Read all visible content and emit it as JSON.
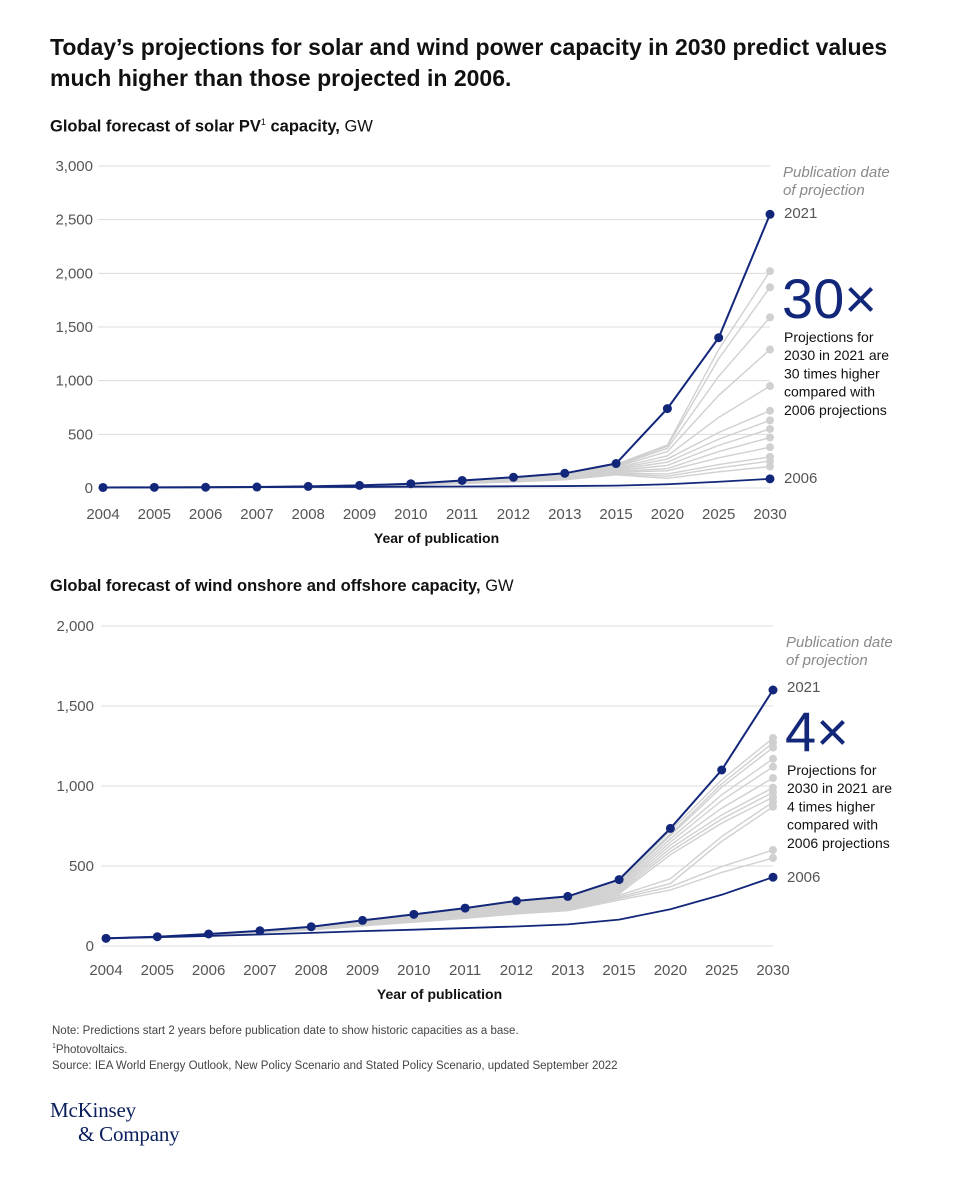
{
  "headline": "Today’s projections for solar and wind power capacity in 2030 predict values much higher than those projected in 2006.",
  "chart_data": [
    {
      "type": "line",
      "title_main": "Global forecast of solar PV",
      "title_sup": "1",
      "title_bold_end": " capacity,",
      "title_unit": " GW",
      "xlabel": "Year of publication",
      "categories": [
        "2004",
        "2005",
        "2006",
        "2007",
        "2008",
        "2009",
        "2010",
        "2011",
        "2012",
        "2013",
        "2015",
        "2020",
        "2025",
        "2030"
      ],
      "yticks": [
        "0",
        "500",
        "1,000",
        "1,500",
        "2,000",
        "2,500",
        "3,000"
      ],
      "ytick_values": [
        0,
        500,
        1000,
        1500,
        2000,
        2500,
        3000
      ],
      "ylim": [
        0,
        3000
      ],
      "legend_title": [
        "Publication date",
        "of projection"
      ],
      "label_top": "2021",
      "label_bottom": "2006",
      "multiplier": "30×",
      "note": [
        "Projections for",
        "2030 in 2021 are",
        "30 times higher",
        "compared with",
        "2006 projections"
      ],
      "series_2021": [
        5,
        6,
        7,
        9,
        15,
        24,
        40,
        70,
        100,
        137,
        228,
        740,
        1400,
        2550
      ],
      "series_2006": [
        5,
        6,
        7,
        8,
        9,
        10,
        12,
        14,
        16,
        18,
        22,
        35,
        58,
        85
      ],
      "grey_2030": [
        2020,
        1870,
        1590,
        1290,
        950,
        720,
        630,
        550,
        470,
        380,
        290,
        250,
        200
      ],
      "grey_2020": [
        400,
        390,
        370,
        340,
        300,
        270,
        240,
        210,
        180,
        160,
        130,
        110,
        90
      ]
    },
    {
      "type": "line",
      "title_main": "Global forecast of wind onshore and offshore capacity,",
      "title_sup": "",
      "title_bold_end": "",
      "title_unit": " GW",
      "xlabel": "Year of publication",
      "categories": [
        "2004",
        "2005",
        "2006",
        "2007",
        "2008",
        "2009",
        "2010",
        "2011",
        "2012",
        "2013",
        "2015",
        "2020",
        "2025",
        "2030"
      ],
      "yticks": [
        "0",
        "500",
        "1,000",
        "1,500",
        "2,000"
      ],
      "ytick_values": [
        0,
        500,
        1000,
        1500,
        2000
      ],
      "ylim": [
        0,
        2000
      ],
      "legend_title": [
        "Publication date",
        "of projection"
      ],
      "label_top": "2021",
      "label_bottom": "2006",
      "multiplier": "4×",
      "note": [
        "Projections for",
        "2030 in 2021 are",
        "4 times higher",
        "compared with",
        "2006 projections"
      ],
      "series_2021": [
        48,
        58,
        75,
        95,
        120,
        160,
        198,
        237,
        282,
        310,
        415,
        735,
        1100,
        1600
      ],
      "series_2006": [
        48,
        55,
        63,
        72,
        82,
        93,
        102,
        112,
        122,
        135,
        165,
        230,
        320,
        430
      ],
      "grey_2030": [
        1300,
        1270,
        1240,
        1170,
        1120,
        1050,
        990,
        960,
        930,
        900,
        870,
        600,
        550
      ],
      "grey_2020": [
        720,
        700,
        690,
        670,
        650,
        630,
        610,
        590,
        570,
        420,
        390,
        370,
        350
      ]
    }
  ],
  "notes": {
    "line1": "Note: Predictions start 2 years before publication date to show historic capacities as a base.",
    "line2_sup": "1",
    "line2": "Photovoltaics.",
    "line3": "Source: IEA World Energy Outlook, New Policy Scenario and Stated Policy Scenario, updated September 2022"
  },
  "logo": {
    "line1": "McKinsey",
    "line2": "& Company"
  },
  "colors": {
    "navy": "#13277a",
    "grey": "#d0d0d0",
    "grid": "#dcdcdc",
    "axis_text": "#555555",
    "legend_italic": "#8a8a8a"
  }
}
